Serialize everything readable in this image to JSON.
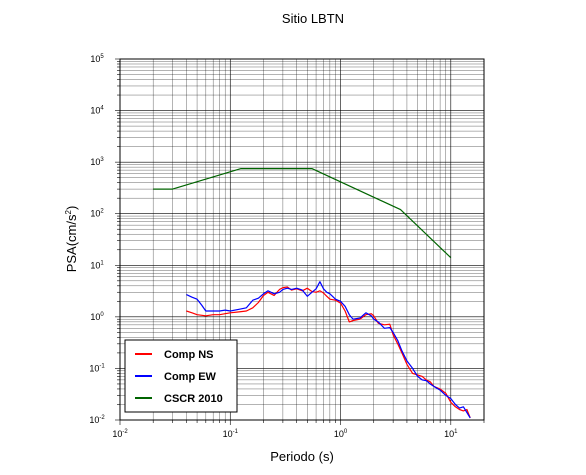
{
  "chart_data": {
    "type": "line",
    "title": "Sitio LBTN",
    "xlabel": "Periodo (s)",
    "ylabel_base": "PSA(cm/s",
    "ylabel_sup": "2",
    "ylabel_close": ")",
    "x_scale": "log",
    "y_scale": "log",
    "xlim": [
      0.01,
      20
    ],
    "ylim": [
      0.01,
      100000
    ],
    "grid": true,
    "legend_position": "bottom-left",
    "x_ticks": [
      {
        "value": 0.01,
        "base": "10",
        "exp": "-2"
      },
      {
        "value": 0.1,
        "base": "10",
        "exp": "-1"
      },
      {
        "value": 1,
        "base": "10",
        "exp": "0"
      },
      {
        "value": 10,
        "base": "10",
        "exp": "1"
      }
    ],
    "y_ticks": [
      {
        "value": 0.01,
        "base": "10",
        "exp": "-2"
      },
      {
        "value": 0.1,
        "base": "10",
        "exp": "-1"
      },
      {
        "value": 1,
        "base": "10",
        "exp": "0"
      },
      {
        "value": 10,
        "base": "10",
        "exp": "1"
      },
      {
        "value": 100,
        "base": "10",
        "exp": "2"
      },
      {
        "value": 1000,
        "base": "10",
        "exp": "3"
      },
      {
        "value": 10000,
        "base": "10",
        "exp": "4"
      },
      {
        "value": 100000,
        "base": "10",
        "exp": "5"
      }
    ],
    "series": [
      {
        "name": "Comp NS",
        "color": "#ff0000",
        "x": [
          0.04,
          0.045,
          0.05,
          0.06,
          0.07,
          0.08,
          0.09,
          0.1,
          0.12,
          0.14,
          0.16,
          0.18,
          0.2,
          0.22,
          0.25,
          0.28,
          0.3,
          0.33,
          0.36,
          0.4,
          0.45,
          0.5,
          0.55,
          0.6,
          0.65,
          0.7,
          0.75,
          0.8,
          0.9,
          1.0,
          1.1,
          1.2,
          1.3,
          1.5,
          1.7,
          1.9,
          2.0,
          2.2,
          2.5,
          2.8,
          3.0,
          3.3,
          3.6,
          4.0,
          4.5,
          5.0,
          5.5,
          6.0,
          6.5,
          7.0,
          8.0,
          9.0,
          10.0,
          11.0,
          12.0,
          13.0,
          14.0,
          15.0
        ],
        "y": [
          1.3,
          1.2,
          1.1,
          1.05,
          1.1,
          1.1,
          1.15,
          1.2,
          1.25,
          1.3,
          1.5,
          1.9,
          2.6,
          3.0,
          2.6,
          3.4,
          3.7,
          3.8,
          3.3,
          3.5,
          3.2,
          3.6,
          3.1,
          3.0,
          3.2,
          2.9,
          2.5,
          2.2,
          2.1,
          1.85,
          1.3,
          0.8,
          0.85,
          0.9,
          1.1,
          1.15,
          1.05,
          0.75,
          0.7,
          0.72,
          0.45,
          0.3,
          0.2,
          0.12,
          0.08,
          0.075,
          0.07,
          0.06,
          0.055,
          0.045,
          0.04,
          0.033,
          0.022,
          0.018,
          0.016,
          0.015,
          0.016,
          0.011
        ]
      },
      {
        "name": "Comp EW",
        "color": "#0000ff",
        "x": [
          0.04,
          0.045,
          0.05,
          0.055,
          0.06,
          0.07,
          0.08,
          0.09,
          0.1,
          0.12,
          0.14,
          0.16,
          0.18,
          0.2,
          0.22,
          0.25,
          0.28,
          0.3,
          0.33,
          0.36,
          0.4,
          0.45,
          0.5,
          0.55,
          0.6,
          0.65,
          0.7,
          0.75,
          0.8,
          0.9,
          1.0,
          1.1,
          1.2,
          1.3,
          1.5,
          1.7,
          1.9,
          2.0,
          2.2,
          2.5,
          2.8,
          3.0,
          3.3,
          3.6,
          4.0,
          4.5,
          5.0,
          5.5,
          6.0,
          6.5,
          7.0,
          8.0,
          9.0,
          10.0,
          11.0,
          12.0,
          13.0,
          14.0,
          15.0
        ],
        "y": [
          2.7,
          2.4,
          2.2,
          1.7,
          1.3,
          1.3,
          1.3,
          1.35,
          1.3,
          1.4,
          1.5,
          2.1,
          2.3,
          2.8,
          3.2,
          2.8,
          3.0,
          3.4,
          3.6,
          3.4,
          3.6,
          3.3,
          2.5,
          3.0,
          3.5,
          4.8,
          3.5,
          3.0,
          2.8,
          2.2,
          2.0,
          1.6,
          1.1,
          0.9,
          0.95,
          1.2,
          1.05,
          0.9,
          0.8,
          0.6,
          0.62,
          0.5,
          0.35,
          0.22,
          0.14,
          0.1,
          0.07,
          0.06,
          0.058,
          0.05,
          0.045,
          0.038,
          0.03,
          0.026,
          0.02,
          0.017,
          0.018,
          0.014,
          0.011
        ]
      },
      {
        "name": "CSCR 2010",
        "color": "#006400",
        "x": [
          0.02,
          0.03,
          0.125,
          0.55,
          3.5,
          10.0
        ],
        "y": [
          300,
          300,
          750,
          750,
          120,
          14
        ]
      }
    ]
  }
}
